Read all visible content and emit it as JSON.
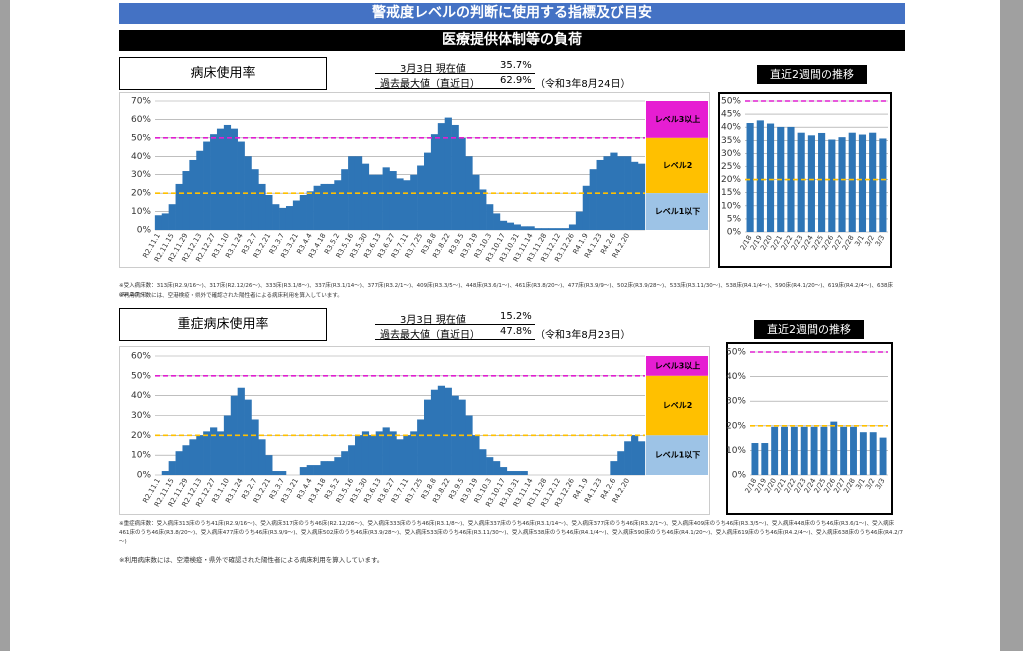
{
  "header": {
    "title": "警戒度レベルの判断に使用する指標及び目安",
    "subtitle": "医療提供体制等の負荷"
  },
  "sections": [
    {
      "label": "病床使用率",
      "current_label": "3月3日 現在値",
      "current_value": "35.7%",
      "max_label": "過去最大値（直近日）",
      "max_value": "62.9%",
      "max_date": "（令和3年8月24日）",
      "recent_title": "直近2週間の推移",
      "notes": [
        "※受入病床数：313床(R2.9/16～)、317床(R2.12/26～)、333床(R3.1/8～)、337床(R3.1/14～)、377床(R3.2/1～)、409床(R3.3/5～)、448床(R3.6/1～)、461床(R3.8/20～)、477床(R3.9/9～)、502床(R3.9/28～)、533床(R3.11/30～)、538床(R4.1/4～)、590床(R4.1/20～)、619床(R4.2/4～)、638床(R4.2/7～)",
        "※利用病床数には、空港検疫・県外で確認された陽性者による病床利用を算入しています。"
      ]
    },
    {
      "label": "重症病床使用率",
      "current_label": "3月3日 現在値",
      "current_value": "15.2%",
      "max_label": "過去最大値（直近日）",
      "max_value": "47.8%",
      "max_date": "（令和3年8月23日）",
      "recent_title": "直近2週間の推移",
      "notes": [
        "※重症病床数：受入病床313床のうち41床(R2.9/16～)、受入病床317床のうち46床(R2.12/26～)、受入病床333床のうち46床(R3.1/8～)、受入病床337床のうち46床(R3.1/14～)、受入病床377床のうち46床(R3.2/1～)、受入病床409床のうち46床(R3.3/5～)、受入病床448床のうち46床(R3.6/1～)、受入病床461床のうち46床(R3.8/20～)、受入病床477床のうち46床(R3.9/9～)、受入病床502床のうち46床(R3.9/28～)、受入病床533床のうち46床(R3.11/30～)、受入病床538床のうち46床(R4.1/4～)、受入病床590床のうち46床(R4.1/20～)、受入病床619床のうち46床(R4.2/4～)、受入病床638床のうち46床(R4.2/7～)",
        "※利用病床数には、空港検疫・県外で確認された陽性者による病床利用を算入しています。"
      ]
    }
  ],
  "chart_data": [
    {
      "type": "bar",
      "color": "#2e75b6",
      "grid": true,
      "categories": [
        "R2.11.1",
        null,
        "R2.11.15",
        null,
        "R2.11.29",
        null,
        "R2.12.13",
        null,
        "R2.12.27",
        null,
        "R3.1.10",
        null,
        "R3.1.24",
        null,
        "R3.2.7",
        null,
        "R3.2.21",
        null,
        "R3.3.7",
        null,
        "R3.3.21",
        null,
        "R3.4.4",
        null,
        "R3.4.18",
        null,
        "R3.5.2",
        null,
        "R3.5.16",
        null,
        "R3.5.30",
        null,
        "R3.6.13",
        null,
        "R3.6.27",
        null,
        "R3.7.11",
        null,
        "R3.7.25",
        null,
        "R3.8.8",
        null,
        "R3.8.22",
        null,
        "R3.9.5",
        null,
        "R3.9.19",
        null,
        "R3.10.3",
        null,
        "R3.10.17",
        null,
        "R3.10.31",
        null,
        "R3.11.14",
        null,
        "R3.11.28",
        null,
        "R3.12.12",
        null,
        "R3.12.26",
        null,
        "R4.1.9",
        null,
        "R4.1.23",
        null,
        "R4.2.6",
        null,
        "R4.2.20",
        null,
        null
      ],
      "values": [
        8,
        9,
        14,
        25,
        32,
        38,
        43,
        48,
        52,
        55,
        57,
        55,
        48,
        40,
        33,
        25,
        19,
        14,
        12,
        13,
        16,
        19,
        21,
        24,
        25,
        25,
        27,
        33,
        40,
        40,
        36,
        30,
        30,
        34,
        32,
        28,
        27,
        30,
        35,
        42,
        52,
        58,
        61,
        57,
        50,
        40,
        30,
        22,
        14,
        9,
        5,
        4,
        3,
        2,
        2,
        1,
        1,
        1,
        1,
        1,
        3,
        10,
        24,
        33,
        38,
        40,
        42,
        40,
        40,
        37,
        36
      ],
      "ylim": [
        0,
        70
      ],
      "yticks": [
        {
          "value": 0,
          "label": "0%"
        },
        {
          "value": 10,
          "label": "10%"
        },
        {
          "value": 20,
          "label": "20%"
        },
        {
          "value": 30,
          "label": "30%"
        },
        {
          "value": 40,
          "label": "40%"
        },
        {
          "value": 50,
          "label": "50%"
        },
        {
          "value": 60,
          "label": "60%"
        },
        {
          "value": 70,
          "label": "70%"
        }
      ],
      "lines": [
        {
          "value": 50,
          "color": "#e020d0"
        },
        {
          "value": 20,
          "color": "#ffc000"
        }
      ],
      "levels": [
        {
          "label": "レベル3以上",
          "from": 50,
          "to": 70,
          "color": "#e61ed2"
        },
        {
          "label": "レベル2",
          "from": 20,
          "to": 50,
          "color": "#ffc000"
        },
        {
          "label": "レベル1以下",
          "from": 0,
          "to": 20,
          "color": "#9dc3e6"
        }
      ]
    },
    {
      "type": "bar",
      "color": "#2e75b6",
      "grid": true,
      "categories": [
        "2/18",
        "2/19",
        "2/20",
        "2/21",
        "2/22",
        "2/23",
        "2/24",
        "2/25",
        "2/26",
        "2/27",
        "2/28",
        "3/1",
        "3/2",
        "3/3"
      ],
      "values": [
        41.6,
        42.6,
        41.4,
        40.1,
        40.1,
        37.9,
        36.9,
        37.8,
        35.3,
        36.2,
        37.9,
        37.2,
        37.9,
        35.7
      ],
      "ylim": [
        0,
        50
      ],
      "yticks": [
        {
          "value": 0,
          "label": "0%"
        },
        {
          "value": 5,
          "label": "5%"
        },
        {
          "value": 10,
          "label": "10%"
        },
        {
          "value": 15,
          "label": "15%"
        },
        {
          "value": 20,
          "label": "20%"
        },
        {
          "value": 25,
          "label": "25%"
        },
        {
          "value": 30,
          "label": "30%"
        },
        {
          "value": 35,
          "label": "35%"
        },
        {
          "value": 40,
          "label": "40%"
        },
        {
          "value": 45,
          "label": "45%"
        },
        {
          "value": 50,
          "label": "50%"
        }
      ],
      "lines": [
        {
          "value": 50,
          "color": "#e020d0"
        },
        {
          "value": 20,
          "color": "#ffc000"
        }
      ]
    },
    {
      "type": "bar",
      "color": "#2e75b6",
      "grid": true,
      "categories": [
        "R2.11.1",
        null,
        "R2.11.15",
        null,
        "R2.11.29",
        null,
        "R2.12.13",
        null,
        "R2.12.27",
        null,
        "R3.1.10",
        null,
        "R3.1.24",
        null,
        "R3.2.7",
        null,
        "R3.2.21",
        null,
        "R3.3.7",
        null,
        "R3.3.21",
        null,
        "R3.4.4",
        null,
        "R3.4.18",
        null,
        "R3.5.2",
        null,
        "R3.5.16",
        null,
        "R3.5.30",
        null,
        "R3.6.13",
        null,
        "R3.6.27",
        null,
        "R3.7.11",
        null,
        "R3.7.25",
        null,
        "R3.8.8",
        null,
        "R3.8.22",
        null,
        "R3.9.5",
        null,
        "R3.9.19",
        null,
        "R3.10.3",
        null,
        "R3.10.17",
        null,
        "R3.10.31",
        null,
        "R3.11.14",
        null,
        "R3.11.28",
        null,
        "R3.12.12",
        null,
        "R3.12.26",
        null,
        "R4.1.9",
        null,
        "R4.1.23",
        null,
        "R4.2.6",
        null,
        "R4.2.20",
        null,
        null
      ],
      "values": [
        0,
        2,
        7,
        12,
        15,
        18,
        20,
        22,
        24,
        22,
        30,
        40,
        44,
        38,
        28,
        18,
        10,
        2,
        2,
        0,
        0,
        4,
        5,
        5,
        7,
        7,
        9,
        12,
        15,
        20,
        22,
        20,
        22,
        24,
        22,
        18,
        20,
        22,
        28,
        38,
        43,
        45,
        44,
        40,
        38,
        30,
        20,
        13,
        9,
        7,
        4,
        2,
        2,
        2,
        0,
        0,
        0,
        0,
        0,
        0,
        0,
        0,
        0,
        0,
        0,
        0,
        7,
        12,
        17,
        20,
        17
      ],
      "ylim": [
        0,
        60
      ],
      "yticks": [
        {
          "value": 0,
          "label": "0%"
        },
        {
          "value": 10,
          "label": "10%"
        },
        {
          "value": 20,
          "label": "20%"
        },
        {
          "value": 30,
          "label": "30%"
        },
        {
          "value": 40,
          "label": "40%"
        },
        {
          "value": 50,
          "label": "50%"
        },
        {
          "value": 60,
          "label": "60%"
        }
      ],
      "lines": [
        {
          "value": 50,
          "color": "#e020d0"
        },
        {
          "value": 20,
          "color": "#ffc000"
        }
      ],
      "levels": [
        {
          "label": "レベル3以上",
          "from": 50,
          "to": 60,
          "color": "#e61ed2"
        },
        {
          "label": "レベル2",
          "from": 20,
          "to": 50,
          "color": "#ffc000"
        },
        {
          "label": "レベル1以下",
          "from": 0,
          "to": 20,
          "color": "#9dc3e6"
        }
      ]
    },
    {
      "type": "bar",
      "color": "#2e75b6",
      "grid": true,
      "categories": [
        "2/18",
        "2/19",
        "2/20",
        "2/21",
        "2/22",
        "2/23",
        "2/24",
        "2/25",
        "2/26",
        "2/27",
        "2/28",
        "3/1",
        "3/2",
        "3/3"
      ],
      "values": [
        13.0,
        13.0,
        19.6,
        19.6,
        19.6,
        19.6,
        19.6,
        19.6,
        21.7,
        19.6,
        19.6,
        17.4,
        17.4,
        15.2
      ],
      "ylim": [
        0,
        50
      ],
      "yticks": [
        {
          "value": 0,
          "label": "0%"
        },
        {
          "value": 10,
          "label": "10%"
        },
        {
          "value": 20,
          "label": "20%"
        },
        {
          "value": 30,
          "label": "30%"
        },
        {
          "value": 40,
          "label": "40%"
        },
        {
          "value": 50,
          "label": "50%"
        }
      ],
      "lines": [
        {
          "value": 50,
          "color": "#e020d0"
        },
        {
          "value": 20,
          "color": "#ffc000"
        }
      ]
    }
  ]
}
